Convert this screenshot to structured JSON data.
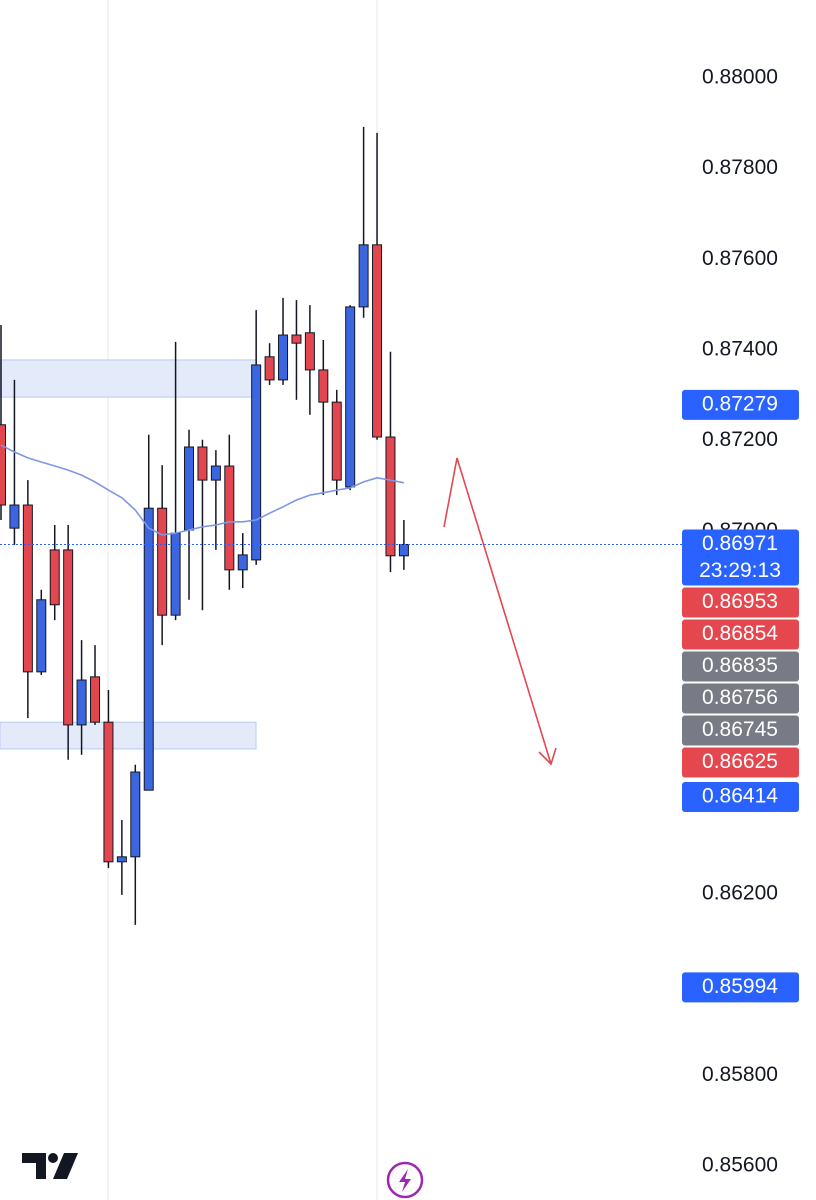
{
  "chart_data": {
    "type": "candlestick",
    "ylim": [
      0.85525,
      0.88172
    ],
    "yticks": [
      {
        "value": 0.856,
        "label": "0.85600"
      },
      {
        "value": 0.858,
        "label": "0.85800"
      },
      {
        "value": 0.862,
        "label": "0.86200"
      },
      {
        "value": 0.87,
        "label": "0.87000"
      },
      {
        "value": 0.872,
        "label": "0.87200"
      },
      {
        "value": 0.874,
        "label": "0.87400"
      },
      {
        "value": 0.876,
        "label": "0.87600"
      },
      {
        "value": 0.878,
        "label": "0.87800"
      },
      {
        "value": 0.88,
        "label": "0.88000"
      }
    ],
    "grid": true,
    "colors": {
      "up": "#3b66e0",
      "down": "#e2474f"
    },
    "open": [
      0.87235,
      0.87007,
      0.87058,
      0.8669,
      0.86959,
      0.86959,
      0.86573,
      0.86679,
      0.86579,
      0.86271,
      0.86282,
      0.86429,
      0.87051,
      0.86815,
      0.87003,
      0.87186,
      0.87113,
      0.87144,
      0.86915,
      0.86937,
      0.87385,
      0.87334,
      0.87433,
      0.87438,
      0.87356,
      0.87285,
      0.87098,
      0.87495,
      0.87632,
      0.87208,
      0.86946
    ],
    "high": [
      0.87455,
      0.87334,
      0.87113,
      0.86871,
      0.87014,
      0.87014,
      0.8676,
      0.86749,
      0.8665,
      0.86363,
      0.86485,
      0.87213,
      0.87146,
      0.87418,
      0.87224,
      0.87202,
      0.87179,
      0.87213,
      0.86996,
      0.87488,
      0.87415,
      0.87515,
      0.8751,
      0.87499,
      0.87422,
      0.87312,
      0.87499,
      0.87892,
      0.87879,
      0.87396,
      0.87025
    ],
    "low": [
      0.87025,
      0.8697,
      0.86588,
      0.86683,
      0.86804,
      0.86496,
      0.86507,
      0.86573,
      0.86257,
      0.86198,
      0.86132,
      0.86429,
      0.86749,
      0.86804,
      0.86849,
      0.86826,
      0.86959,
      0.86871,
      0.86875,
      0.86926,
      0.87323,
      0.87323,
      0.8729,
      0.87257,
      0.8708,
      0.8708,
      0.87091,
      0.87471,
      0.87202,
      0.8691,
      0.86915
    ],
    "close": [
      0.87058,
      0.87058,
      0.8669,
      0.86849,
      0.86838,
      0.86573,
      0.86672,
      0.86579,
      0.86271,
      0.86282,
      0.86469,
      0.87051,
      0.86815,
      0.86996,
      0.87186,
      0.87113,
      0.87144,
      0.86915,
      0.86948,
      0.87367,
      0.87334,
      0.87433,
      0.87415,
      0.87356,
      0.87285,
      0.87113,
      0.87495,
      0.87632,
      0.87208,
      0.86946,
      0.86971
    ],
    "moving_average": {
      "color": "#7d96e6",
      "values": [
        0.8719,
        0.87175,
        0.87162,
        0.87153,
        0.87144,
        0.87135,
        0.87124,
        0.87109,
        0.87091,
        0.87074,
        0.87047,
        0.87007,
        0.86992,
        0.86996,
        0.87003,
        0.8701,
        0.87014,
        0.87021,
        0.87021,
        0.87025,
        0.8704,
        0.87054,
        0.87069,
        0.8708,
        0.87085,
        0.87091,
        0.87096,
        0.87109,
        0.87118,
        0.87113,
        0.87107
      ]
    },
    "zones": [
      {
        "top": 0.87378,
        "bottom": 0.87296
      },
      {
        "top": 0.86579,
        "bottom": 0.8652
      }
    ],
    "last_price": 0.86971,
    "countdown": "23:29:13",
    "price_labels": [
      {
        "value": 0.87279,
        "label": "0.87279",
        "color": "#2962ff"
      },
      {
        "value": 0.86971,
        "label": "0.86971",
        "color": "#2962ff"
      },
      {
        "value": 0.86953,
        "label": "0.86953",
        "color": "#e5474f"
      },
      {
        "value": 0.86854,
        "label": "0.86854",
        "color": "#e5474f"
      },
      {
        "value": 0.86835,
        "label": "0.86835",
        "color": "#787b86"
      },
      {
        "value": 0.86756,
        "label": "0.86756",
        "color": "#787b86"
      },
      {
        "value": 0.86745,
        "label": "0.86745",
        "color": "#787b86"
      },
      {
        "value": 0.86625,
        "label": "0.86625",
        "color": "#e5474f"
      },
      {
        "value": 0.86414,
        "label": "0.86414",
        "color": "#2962ff"
      },
      {
        "value": 0.85994,
        "label": "0.85994",
        "color": "#2962ff"
      }
    ]
  }
}
